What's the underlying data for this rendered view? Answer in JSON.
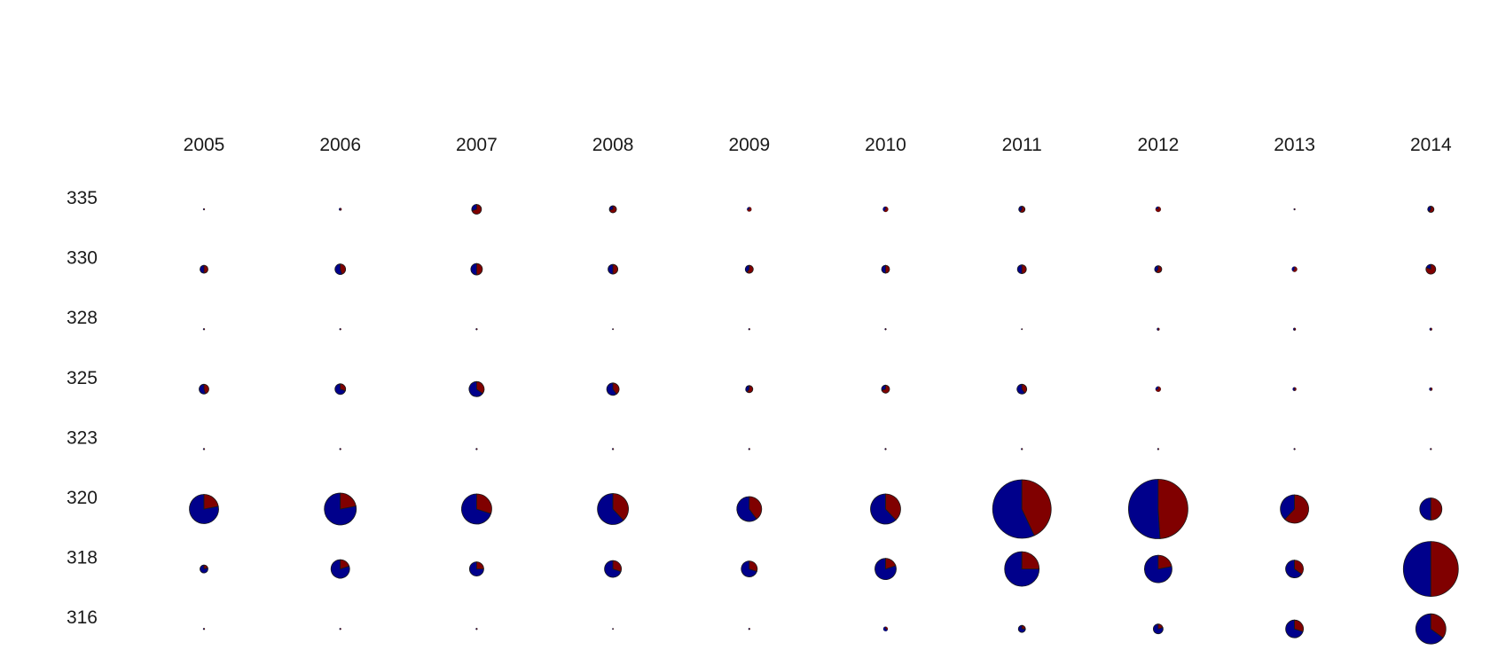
{
  "chart_data": {
    "type": "pie-matrix",
    "title": "",
    "xlabel": "",
    "ylabel": "",
    "columns": [
      "2005",
      "2006",
      "2007",
      "2008",
      "2009",
      "2010",
      "2011",
      "2012",
      "2013",
      "2014"
    ],
    "rows": [
      "335",
      "330",
      "328",
      "325",
      "323",
      "320",
      "318",
      "316"
    ],
    "series_colors": [
      "#00008b",
      "#800000"
    ],
    "grid": false,
    "legend": "none",
    "cells": [
      [
        {
          "r": 1,
          "f": 0.5
        },
        {
          "r": 1.5,
          "f": 0.5
        },
        {
          "r": 5.5,
          "f": 0.7
        },
        {
          "r": 4,
          "f": 0.7
        },
        {
          "r": 2.5,
          "f": 0.7
        },
        {
          "r": 3,
          "f": 0.6
        },
        {
          "r": 3.5,
          "f": 0.6
        },
        {
          "r": 3,
          "f": 0.8
        },
        {
          "r": 1,
          "f": 0.5
        },
        {
          "r": 3.5,
          "f": 0.6
        }
      ],
      [
        {
          "r": 4.5,
          "f": 0.5
        },
        {
          "r": 6,
          "f": 0.45
        },
        {
          "r": 6.5,
          "f": 0.5
        },
        {
          "r": 5.5,
          "f": 0.5
        },
        {
          "r": 4.5,
          "f": 0.6
        },
        {
          "r": 4.5,
          "f": 0.5
        },
        {
          "r": 5,
          "f": 0.5
        },
        {
          "r": 4,
          "f": 0.6
        },
        {
          "r": 3,
          "f": 0.6
        },
        {
          "r": 5.5,
          "f": 0.8
        }
      ],
      [
        {
          "r": 1,
          "f": 0.5
        },
        {
          "r": 1,
          "f": 0.5
        },
        {
          "r": 1,
          "f": 0.5
        },
        {
          "r": 0.8,
          "f": 0.5
        },
        {
          "r": 1,
          "f": 0.5
        },
        {
          "r": 1,
          "f": 0.5
        },
        {
          "r": 0.8,
          "f": 0.5
        },
        {
          "r": 1.5,
          "f": 0.5
        },
        {
          "r": 1.5,
          "f": 0.5
        },
        {
          "r": 1.5,
          "f": 0.5
        }
      ],
      [
        {
          "r": 5.5,
          "f": 0.45
        },
        {
          "r": 6,
          "f": 0.3
        },
        {
          "r": 8.5,
          "f": 0.35
        },
        {
          "r": 7,
          "f": 0.4
        },
        {
          "r": 4,
          "f": 0.6
        },
        {
          "r": 4.5,
          "f": 0.7
        },
        {
          "r": 5.5,
          "f": 0.4
        },
        {
          "r": 3,
          "f": 0.7
        },
        {
          "r": 2,
          "f": 0.5
        },
        {
          "r": 1.8,
          "f": 0.5
        }
      ],
      [
        {
          "r": 1,
          "f": 0.5
        },
        {
          "r": 1,
          "f": 0.5
        },
        {
          "r": 1,
          "f": 0.5
        },
        {
          "r": 1,
          "f": 0.5
        },
        {
          "r": 1,
          "f": 0.5
        },
        {
          "r": 1,
          "f": 0.5
        },
        {
          "r": 1,
          "f": 0.5
        },
        {
          "r": 1,
          "f": 0.5
        },
        {
          "r": 1,
          "f": 0.5
        },
        {
          "r": 1,
          "f": 0.5
        }
      ],
      [
        {
          "r": 16.5,
          "f": 0.22
        },
        {
          "r": 18,
          "f": 0.22
        },
        {
          "r": 17,
          "f": 0.3
        },
        {
          "r": 17.5,
          "f": 0.38
        },
        {
          "r": 14,
          "f": 0.4
        },
        {
          "r": 17,
          "f": 0.38
        },
        {
          "r": 33,
          "f": 0.43
        },
        {
          "r": 33.5,
          "f": 0.49
        },
        {
          "r": 16,
          "f": 0.62
        },
        {
          "r": 12.5,
          "f": 0.5
        }
      ],
      [
        {
          "r": 4.5,
          "f": 0.2
        },
        {
          "r": 10.5,
          "f": 0.2
        },
        {
          "r": 8,
          "f": 0.25
        },
        {
          "r": 9.5,
          "f": 0.3
        },
        {
          "r": 9,
          "f": 0.3
        },
        {
          "r": 12,
          "f": 0.2
        },
        {
          "r": 19.5,
          "f": 0.25
        },
        {
          "r": 15.5,
          "f": 0.22
        },
        {
          "r": 10,
          "f": 0.35
        },
        {
          "r": 31,
          "f": 0.5
        }
      ],
      [
        {
          "r": 1,
          "f": 0.5
        },
        {
          "r": 1,
          "f": 0.5
        },
        {
          "r": 1,
          "f": 0.5
        },
        {
          "r": 0.8,
          "f": 0.5
        },
        {
          "r": 1,
          "f": 0.5
        },
        {
          "r": 2.5,
          "f": 0.3
        },
        {
          "r": 4,
          "f": 0.25
        },
        {
          "r": 5.5,
          "f": 0.2
        },
        {
          "r": 10,
          "f": 0.3
        },
        {
          "r": 17,
          "f": 0.35
        }
      ]
    ]
  }
}
